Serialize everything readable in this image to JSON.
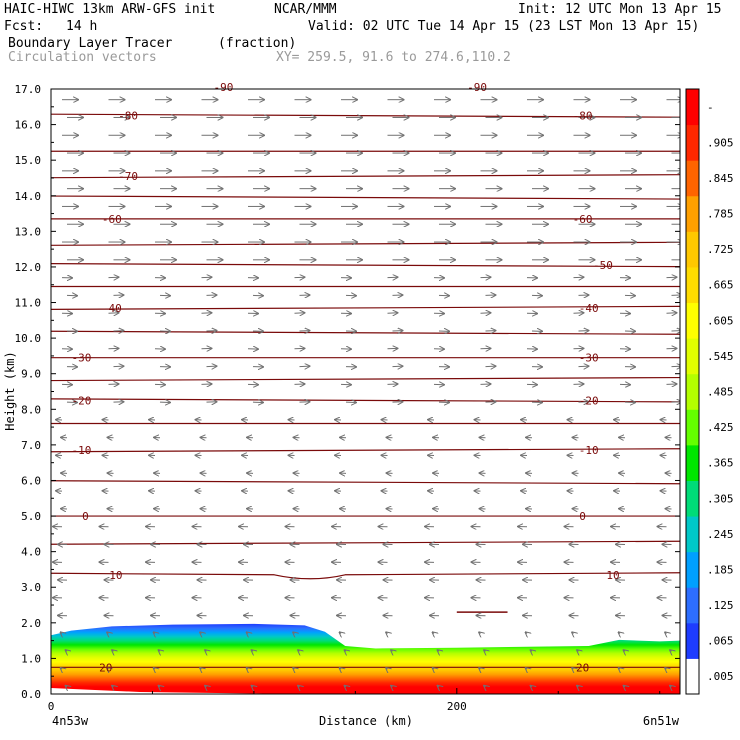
{
  "header": {
    "model": "HAIC-HIWC 13km ARW-GFS init",
    "org": "NCAR/MMM",
    "init": "Init: 12 UTC Mon 13 Apr 15",
    "fcst_label": "Fcst:",
    "fcst_value": "14 h",
    "valid": "Valid: 02 UTC Tue 14 Apr 15 (23 LST Mon 13 Apr 15)",
    "field": "Boundary Layer Tracer",
    "field_units": "(fraction)",
    "vectors": "Circulation vectors",
    "xy": "XY= 259.5, 91.6 to 274.6,110.2"
  },
  "chart_data": {
    "type": "heatmap",
    "ylabel": "Height (km)",
    "xlabel": "Distance (km)",
    "ylim": [
      0,
      17
    ],
    "xlim": [
      0,
      310
    ],
    "y_ticks": [
      "0.0",
      "1.0",
      "2.0",
      "3.0",
      "4.0",
      "5.0",
      "6.0",
      "7.0",
      "8.0",
      "9.0",
      "10.0",
      "11.0",
      "12.0",
      "13.0",
      "14.0",
      "15.0",
      "16.0",
      "17.0"
    ],
    "x_ticks": [
      {
        "value": 0,
        "label": "0"
      },
      {
        "value": 200,
        "label": "200"
      }
    ],
    "x_end_labels": {
      "left": "4n53w",
      "right": "6n51w"
    },
    "colorbar": {
      "labels": [
        ".005",
        ".065",
        ".125",
        ".185",
        ".245",
        ".305",
        ".365",
        ".425",
        ".485",
        ".545",
        ".605",
        ".665",
        ".725",
        ".785",
        ".845",
        ".905",
        "-"
      ],
      "colors": [
        "#ffffff",
        "#1e3cff",
        "#2d6eff",
        "#00a0ff",
        "#00c8c8",
        "#00dc78",
        "#00e600",
        "#64ff00",
        "#b4ff00",
        "#e1ff00",
        "#ffff00",
        "#ffdc00",
        "#ffc800",
        "#ffa000",
        "#ff6400",
        "#ff2800",
        "#ff0000"
      ]
    },
    "boundary_layer_top_km": [
      {
        "x": 0,
        "y": 1.65
      },
      {
        "x": 10,
        "y": 1.78
      },
      {
        "x": 30,
        "y": 1.9
      },
      {
        "x": 60,
        "y": 1.95
      },
      {
        "x": 100,
        "y": 1.97
      },
      {
        "x": 125,
        "y": 1.93
      },
      {
        "x": 135,
        "y": 1.75
      },
      {
        "x": 145,
        "y": 1.35
      },
      {
        "x": 160,
        "y": 1.28
      },
      {
        "x": 200,
        "y": 1.3
      },
      {
        "x": 240,
        "y": 1.33
      },
      {
        "x": 265,
        "y": 1.35
      },
      {
        "x": 280,
        "y": 1.52
      },
      {
        "x": 300,
        "y": 1.48
      },
      {
        "x": 310,
        "y": 1.5
      }
    ],
    "temperature_contours": [
      {
        "label": "-80",
        "y": 16.25,
        "label_x": [
          38,
          262
        ]
      },
      {
        "label": "",
        "y": 15.25,
        "label_x": []
      },
      {
        "label": "-70",
        "y": 14.55,
        "label_x": [
          38
        ]
      },
      {
        "label": "",
        "y": 13.95,
        "label_x": []
      },
      {
        "label": "-60",
        "y": 13.35,
        "label_x": [
          30,
          262
        ]
      },
      {
        "label": "",
        "y": 12.65,
        "label_x": []
      },
      {
        "label": "-50",
        "y": 12.05,
        "label_x": [
          272
        ]
      },
      {
        "label": "",
        "y": 11.45,
        "label_x": []
      },
      {
        "label": "-40",
        "y": 10.85,
        "label_x": [
          30,
          265
        ]
      },
      {
        "label": "",
        "y": 10.15,
        "label_x": []
      },
      {
        "label": "-30",
        "y": 9.45,
        "label_x": [
          15,
          265
        ]
      },
      {
        "label": "",
        "y": 8.85,
        "label_x": []
      },
      {
        "label": "-20",
        "y": 8.25,
        "label_x": [
          15,
          265
        ]
      },
      {
        "label": "",
        "y": 7.6,
        "label_x": []
      },
      {
        "label": "-10",
        "y": 6.85,
        "label_x": [
          15,
          265
        ]
      },
      {
        "label": "",
        "y": 5.95,
        "label_x": []
      },
      {
        "label": "0",
        "y": 5.0,
        "label_x": [
          17,
          262
        ]
      },
      {
        "label": "",
        "y": 4.25,
        "label_x": []
      },
      {
        "label": "10",
        "y": 3.35,
        "label_x": [
          32,
          277
        ]
      },
      {
        "label": "20",
        "y": 0.75,
        "label_x": [
          27,
          262
        ]
      }
    ],
    "cut_labels": [
      {
        "text": "-90",
        "x": 85
      },
      {
        "text": "-90",
        "x": 210
      }
    ],
    "grid": false,
    "legend": "right colorbar"
  }
}
